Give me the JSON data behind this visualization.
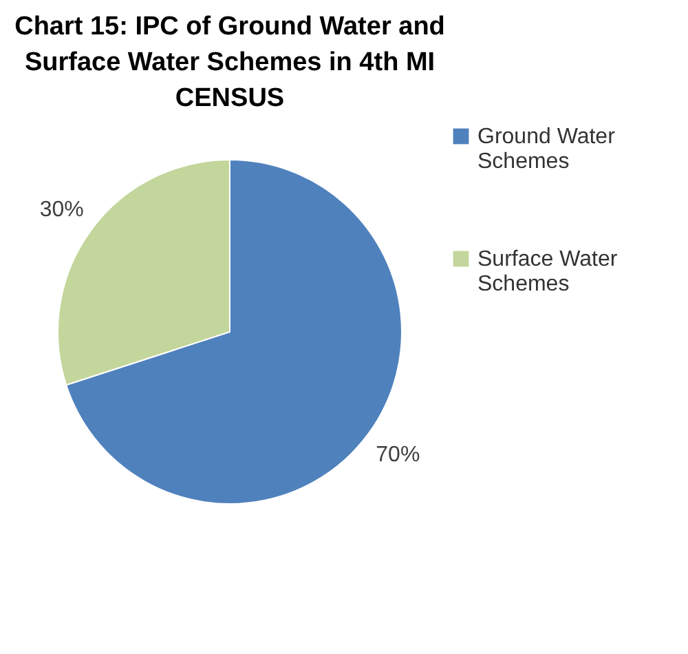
{
  "chart_data": {
    "type": "pie",
    "title": "Chart 15: IPC of Ground Water and Surface Water Schemes in 4th MI CENSUS",
    "categories": [
      "Ground Water Schemes",
      "Surface Water Schemes"
    ],
    "values": [
      70,
      30
    ],
    "colors": [
      "#4f81bd",
      "#c3d69b"
    ],
    "value_labels": [
      "70%",
      "30%"
    ],
    "legend": "right"
  }
}
